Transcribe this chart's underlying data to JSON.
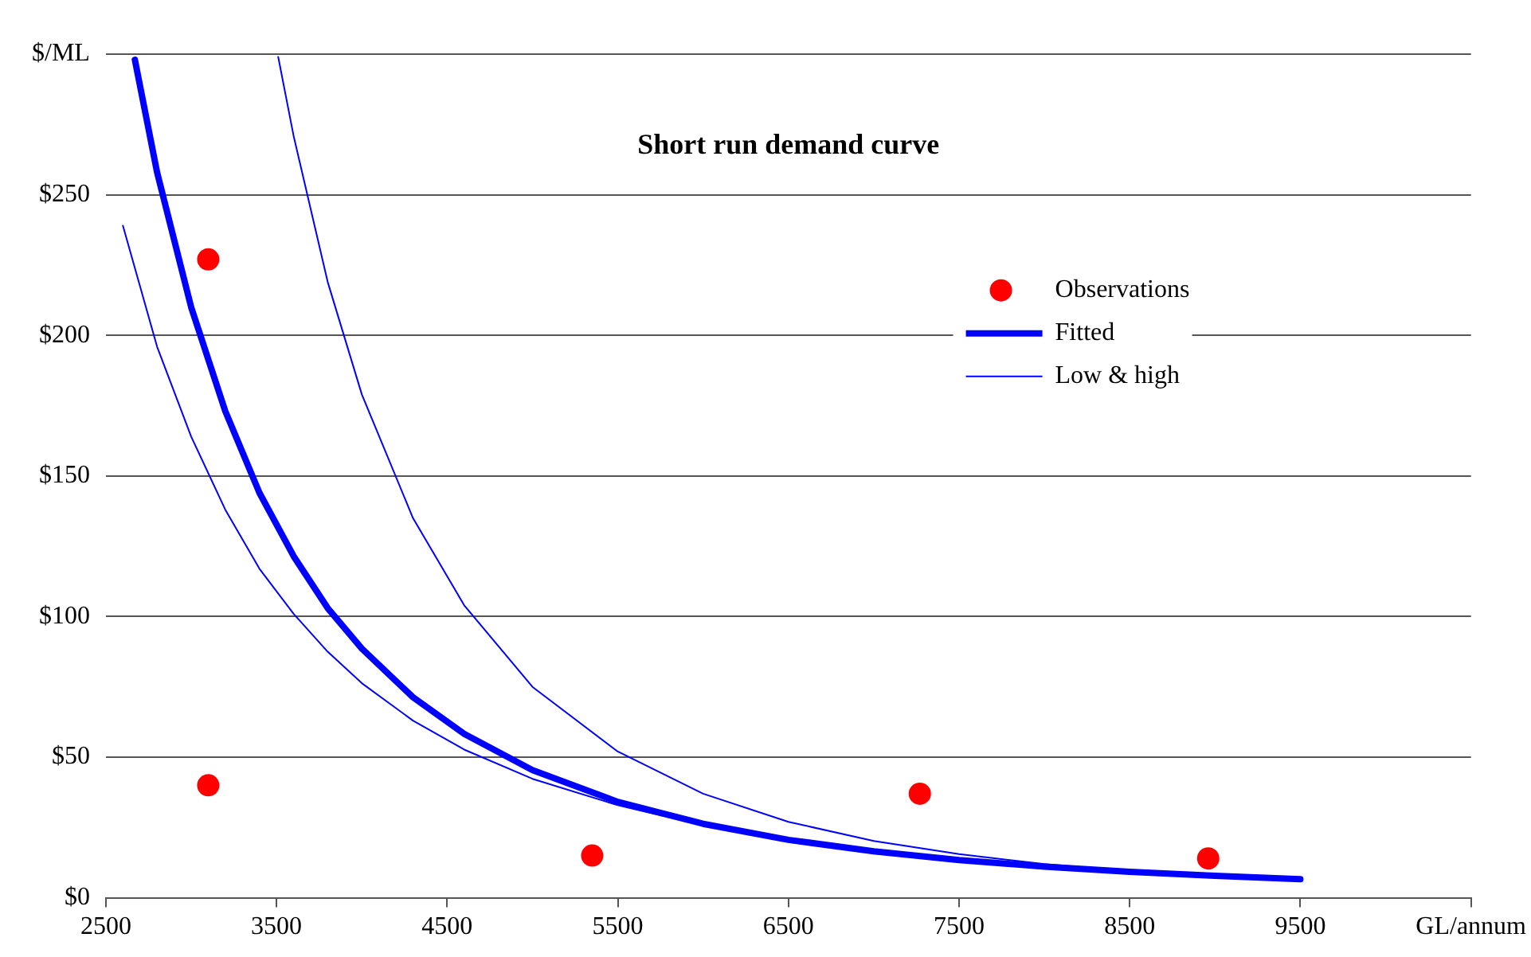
{
  "chart_data": {
    "type": "scatter",
    "title": "Short run demand curve",
    "xlim": [
      2500,
      10500
    ],
    "xticks": [
      2500,
      3500,
      4500,
      5500,
      6500,
      7500,
      8500,
      9500,
      {
        "value": 10500,
        "label": "GL/annum"
      }
    ],
    "ylim": [
      0,
      300
    ],
    "yticks": [
      {
        "value": 0,
        "label": "$0"
      },
      {
        "value": 50,
        "label": "$50"
      },
      {
        "value": 100,
        "label": "$100"
      },
      {
        "value": 150,
        "label": "$150"
      },
      {
        "value": 200,
        "label": "$200"
      },
      {
        "value": 250,
        "label": "$250"
      },
      {
        "value": 300,
        "label": "$/ML"
      }
    ],
    "grid": "y",
    "legend": "top right",
    "series": [
      {
        "name": "Observations",
        "type": "scatter",
        "marker": "circle",
        "color": "#ff0000",
        "x": [
          3100,
          3100,
          5350,
          7270,
          8960
        ],
        "values": [
          227,
          40,
          15,
          37,
          14
        ]
      },
      {
        "name": "Fitted",
        "type": "line",
        "marker": "none",
        "color": "#0000ff",
        "x": [
          2670,
          2800,
          3000,
          3200,
          3400,
          3600,
          3800,
          4000,
          4300,
          4600,
          5000,
          5500,
          6000,
          6500,
          7000,
          7500,
          8000,
          8500,
          9000,
          9500
        ],
        "values": [
          298,
          258,
          210,
          173,
          144,
          121.5,
          103,
          88.6,
          71.3,
          58.3,
          45.4,
          34.1,
          26.3,
          20.6,
          16.5,
          13.4,
          11.1,
          9.2,
          7.8,
          6.6
        ]
      },
      {
        "name": "Low & high",
        "type": "line",
        "marker": "none",
        "color": "#0000ff",
        "x": [
          2600,
          2800,
          3000,
          3200,
          3400,
          3600,
          3800,
          4000,
          4300,
          4600,
          5000,
          5500,
          6000,
          6500,
          7000,
          7500,
          8000,
          8500,
          9000,
          9500
        ],
        "values": [
          239,
          196,
          164,
          138,
          117,
          101,
          87.5,
          76.3,
          63,
          52.7,
          42.3,
          32.9,
          25.8,
          20.3,
          16.3,
          13.2,
          11,
          9.1,
          7.7,
          6.5
        ]
      },
      {
        "type": "line",
        "marker": "none",
        "color": "#0000ff",
        "x": [
          3510,
          3600,
          3800,
          4000,
          4300,
          4600,
          5000,
          5500,
          6000,
          6500,
          7000,
          7500,
          8000,
          8500,
          9000,
          9500
        ],
        "values": [
          299,
          271,
          219,
          179,
          135,
          104,
          75,
          52,
          37,
          27,
          20.2,
          15.5,
          12,
          9.5,
          7.6,
          6.2
        ]
      }
    ]
  }
}
